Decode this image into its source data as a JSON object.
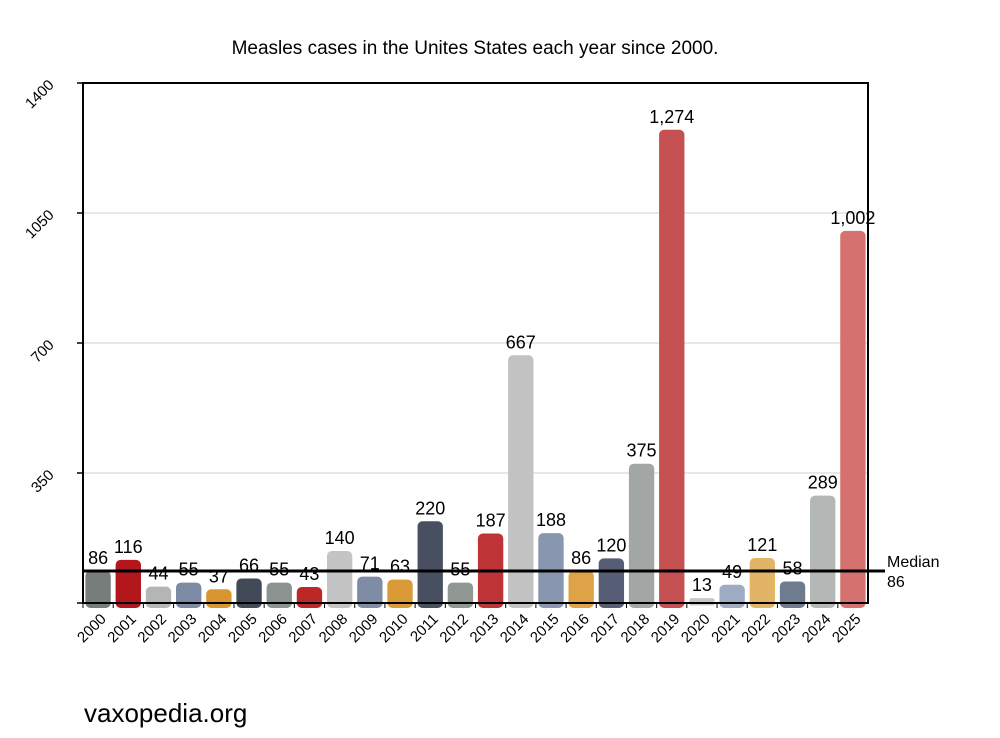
{
  "chart_data": {
    "type": "bar",
    "title": "Measles cases in the Unites States each year since 2000.",
    "xlabel": "",
    "ylabel": "",
    "ylim": [
      0,
      1400
    ],
    "yticks": [
      "350",
      "700",
      "1050",
      "1400"
    ],
    "categories": [
      "2000",
      "2001",
      "2002",
      "2003",
      "2004",
      "2005",
      "2006",
      "2007",
      "2008",
      "2009",
      "2010",
      "2011",
      "2012",
      "2013",
      "2014",
      "2015",
      "2016",
      "2017",
      "2018",
      "2019",
      "2020",
      "2021",
      "2022",
      "2023",
      "2024",
      "2025"
    ],
    "values": [
      86,
      116,
      44,
      55,
      37,
      66,
      55,
      43,
      140,
      71,
      63,
      220,
      55,
      187,
      667,
      188,
      86,
      120,
      375,
      1274,
      13,
      49,
      121,
      58,
      289,
      1002
    ],
    "value_labels": [
      "86",
      "116",
      "44",
      "55",
      "37",
      "66",
      "55",
      "43",
      "140",
      "71",
      "63",
      "220",
      "55",
      "187",
      "667",
      "188",
      "86",
      "120",
      "375",
      "1,274",
      "13",
      "49",
      "121",
      "58",
      "289",
      "1,002"
    ],
    "colors": [
      "#777d7a",
      "#b3161b",
      "#b4b6b5",
      "#7c8aa3",
      "#d9952f",
      "#424a58",
      "#8b9390",
      "#bc2727",
      "#c4c4c4",
      "#7f8ca5",
      "#da9a37",
      "#474f61",
      "#8e9792",
      "#be3336",
      "#c2c2c2",
      "#8896b0",
      "#dea346",
      "#555e74",
      "#a2a6a4",
      "#c55052",
      "#c7c7c7",
      "#9eacc3",
      "#e3b366",
      "#6f7b8f",
      "#b3b7b6",
      "#d5726f"
    ],
    "grid": true,
    "median": {
      "value": 86,
      "label_line1": "Median",
      "label_line2": "86"
    }
  },
  "footer": {
    "credit": "vaxopedia.org"
  }
}
